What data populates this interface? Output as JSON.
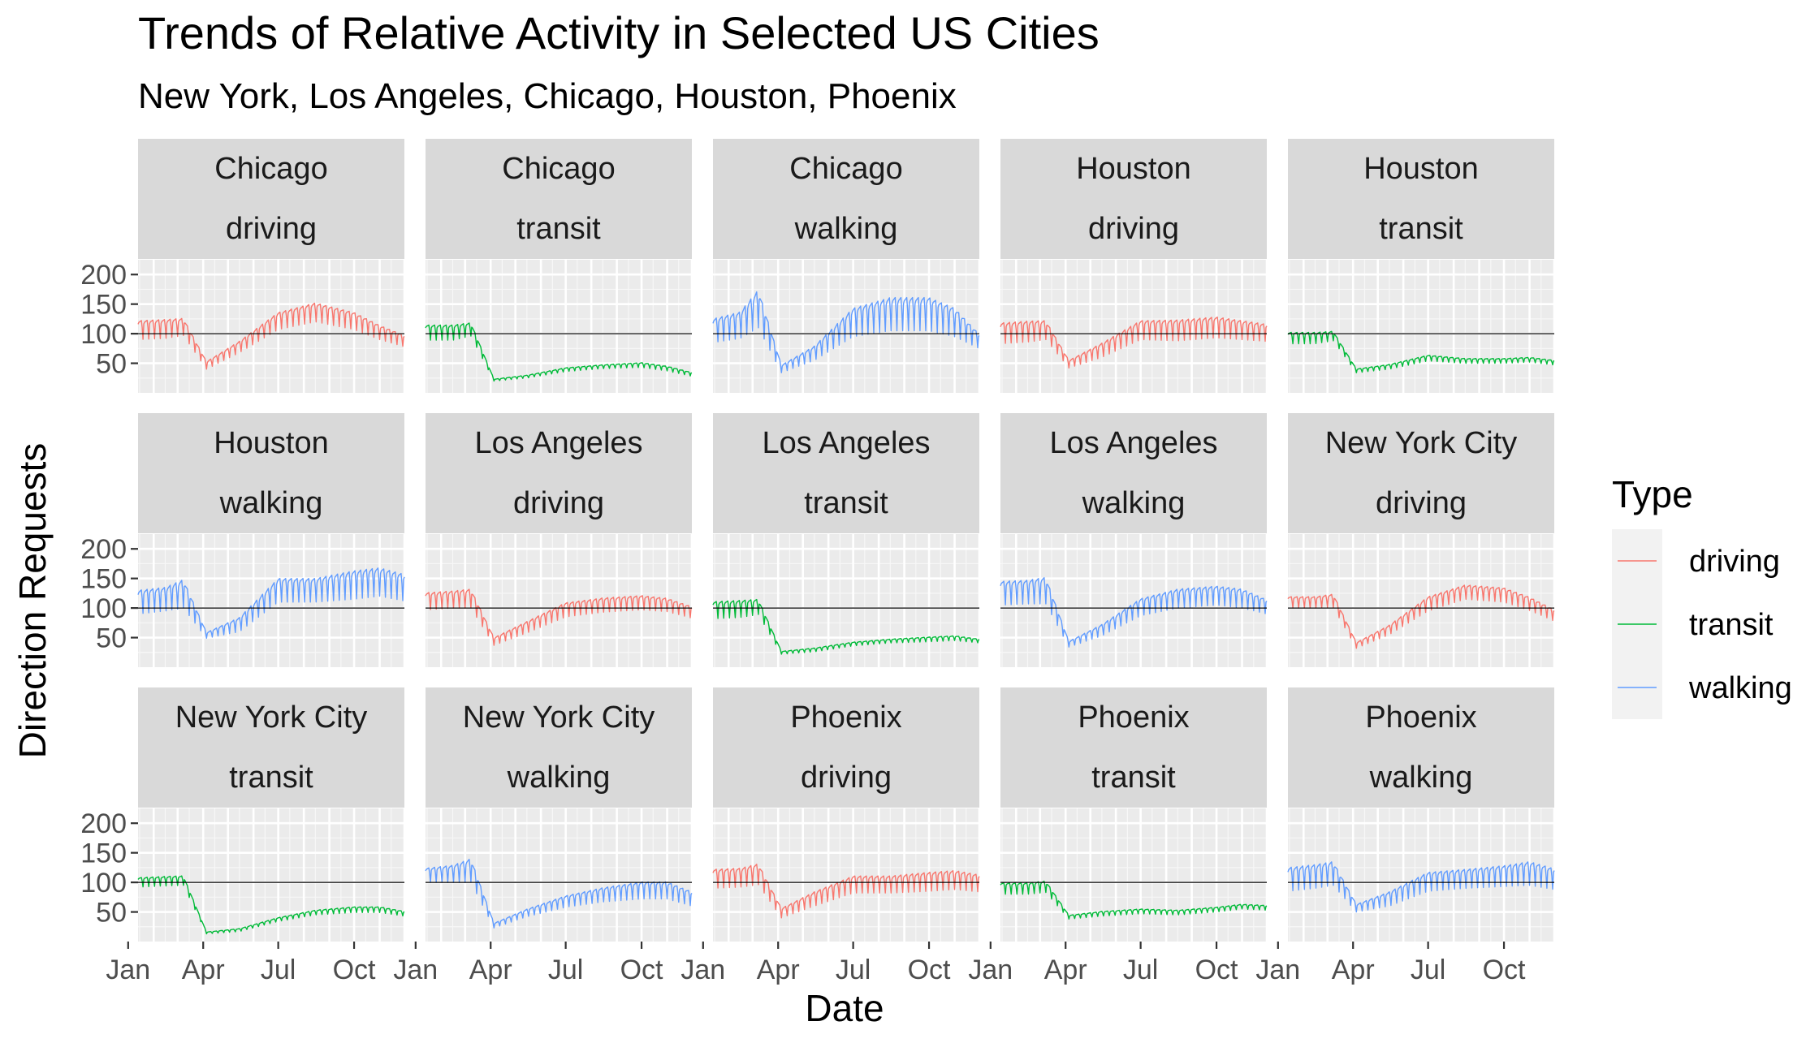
{
  "chart_data": {
    "type": "line",
    "title": "Trends of Relative Activity in Selected US Cities",
    "subtitle": "New York, Los Angeles, Chicago, Houston, Phoenix",
    "xlabel": "Date",
    "ylabel": "Direction Requests",
    "x_ticks": [
      "Jan",
      "Apr",
      "Jul",
      "Oct"
    ],
    "x_tick_months": [
      1,
      4,
      7,
      10
    ],
    "y_ticks": [
      50,
      100,
      150,
      200
    ],
    "ylim": [
      0,
      225
    ],
    "xlim": [
      "2020-01-13",
      "2020-12-01"
    ],
    "reference_line": 100,
    "legend": {
      "title": "Type",
      "position": "right",
      "entries": [
        {
          "name": "driving",
          "color": "#F8766D"
        },
        {
          "name": "transit",
          "color": "#00BA38"
        },
        {
          "name": "walking",
          "color": "#619CFF"
        }
      ]
    },
    "series_dates": [
      "2020-01-13",
      "2020-02-15",
      "2020-03-08",
      "2020-04-05",
      "2020-05-15",
      "2020-07-01",
      "2020-08-15",
      "2020-10-01",
      "2020-11-01",
      "2020-12-01"
    ],
    "panels": [
      {
        "city": "Chicago",
        "type": "driving",
        "baseline": [
          110,
          112,
          115,
          48,
          80,
          125,
          140,
          125,
          105,
          90
        ],
        "amplitude": [
          20,
          20,
          18,
          8,
          12,
          18,
          20,
          18,
          15,
          12
        ]
      },
      {
        "city": "Chicago",
        "type": "transit",
        "baseline": [
          105,
          105,
          110,
          22,
          28,
          40,
          45,
          48,
          42,
          32
        ],
        "amplitude": [
          16,
          16,
          14,
          2,
          3,
          4,
          4,
          5,
          5,
          4
        ]
      },
      {
        "city": "Chicago",
        "type": "walking",
        "baseline": [
          110,
          120,
          150,
          42,
          70,
          125,
          140,
          140,
          125,
          90
        ],
        "amplitude": [
          25,
          28,
          40,
          8,
          15,
          30,
          35,
          35,
          30,
          15
        ]
      },
      {
        "city": "Houston",
        "type": "driving",
        "baseline": [
          105,
          108,
          110,
          50,
          75,
          110,
          110,
          115,
          110,
          105
        ],
        "amplitude": [
          22,
          22,
          20,
          8,
          15,
          20,
          22,
          22,
          20,
          18
        ]
      },
      {
        "city": "Houston",
        "type": "transit",
        "baseline": [
          95,
          95,
          98,
          38,
          45,
          60,
          55,
          55,
          57,
          52
        ],
        "amplitude": [
          12,
          12,
          10,
          4,
          5,
          6,
          5,
          5,
          5,
          5
        ]
      },
      {
        "city": "Houston",
        "type": "walking",
        "baseline": [
          115,
          120,
          130,
          55,
          75,
          135,
          135,
          145,
          150,
          140
        ],
        "amplitude": [
          25,
          25,
          30,
          6,
          15,
          25,
          25,
          30,
          30,
          28
        ]
      },
      {
        "city": "Los Angeles",
        "type": "driving",
        "baseline": [
          115,
          118,
          120,
          45,
          70,
          100,
          108,
          112,
          108,
          95
        ],
        "amplitude": [
          18,
          18,
          20,
          8,
          12,
          15,
          15,
          15,
          14,
          12
        ]
      },
      {
        "city": "Los Angeles",
        "type": "transit",
        "baseline": [
          100,
          102,
          105,
          25,
          30,
          40,
          45,
          48,
          50,
          45
        ],
        "amplitude": [
          18,
          18,
          16,
          3,
          4,
          4,
          4,
          5,
          5,
          4
        ]
      },
      {
        "city": "Los Angeles",
        "type": "walking",
        "baseline": [
          130,
          132,
          135,
          40,
          65,
          105,
          120,
          125,
          120,
          105
        ],
        "amplitude": [
          25,
          25,
          28,
          6,
          12,
          18,
          20,
          20,
          20,
          15
        ]
      },
      {
        "city": "New York City",
        "type": "driving",
        "baseline": [
          112,
          112,
          115,
          38,
          65,
          110,
          130,
          125,
          110,
          90
        ],
        "amplitude": [
          12,
          12,
          14,
          6,
          10,
          15,
          15,
          15,
          14,
          12
        ]
      },
      {
        "city": "New York City",
        "type": "transit",
        "baseline": [
          102,
          104,
          105,
          15,
          20,
          38,
          50,
          55,
          55,
          48
        ],
        "amplitude": [
          10,
          10,
          10,
          2,
          3,
          4,
          5,
          6,
          6,
          5
        ]
      },
      {
        "city": "New York City",
        "type": "walking",
        "baseline": [
          115,
          118,
          125,
          28,
          50,
          70,
          82,
          90,
          90,
          75
        ],
        "amplitude": [
          15,
          18,
          25,
          5,
          8,
          12,
          15,
          18,
          18,
          15
        ]
      },
      {
        "city": "Phoenix",
        "type": "driving",
        "baseline": [
          110,
          112,
          118,
          50,
          75,
          100,
          100,
          105,
          108,
          102
        ],
        "amplitude": [
          20,
          20,
          22,
          10,
          15,
          18,
          18,
          20,
          20,
          18
        ]
      },
      {
        "city": "Phoenix",
        "type": "transit",
        "baseline": [
          92,
          92,
          95,
          42,
          48,
          52,
          50,
          55,
          60,
          58
        ],
        "amplitude": [
          12,
          12,
          12,
          4,
          5,
          5,
          5,
          5,
          5,
          5
        ]
      },
      {
        "city": "Phoenix",
        "type": "walking",
        "baseline": [
          110,
          115,
          120,
          58,
          75,
          105,
          110,
          115,
          120,
          110
        ],
        "amplitude": [
          25,
          25,
          25,
          8,
          15,
          20,
          20,
          22,
          25,
          22
        ]
      }
    ]
  }
}
